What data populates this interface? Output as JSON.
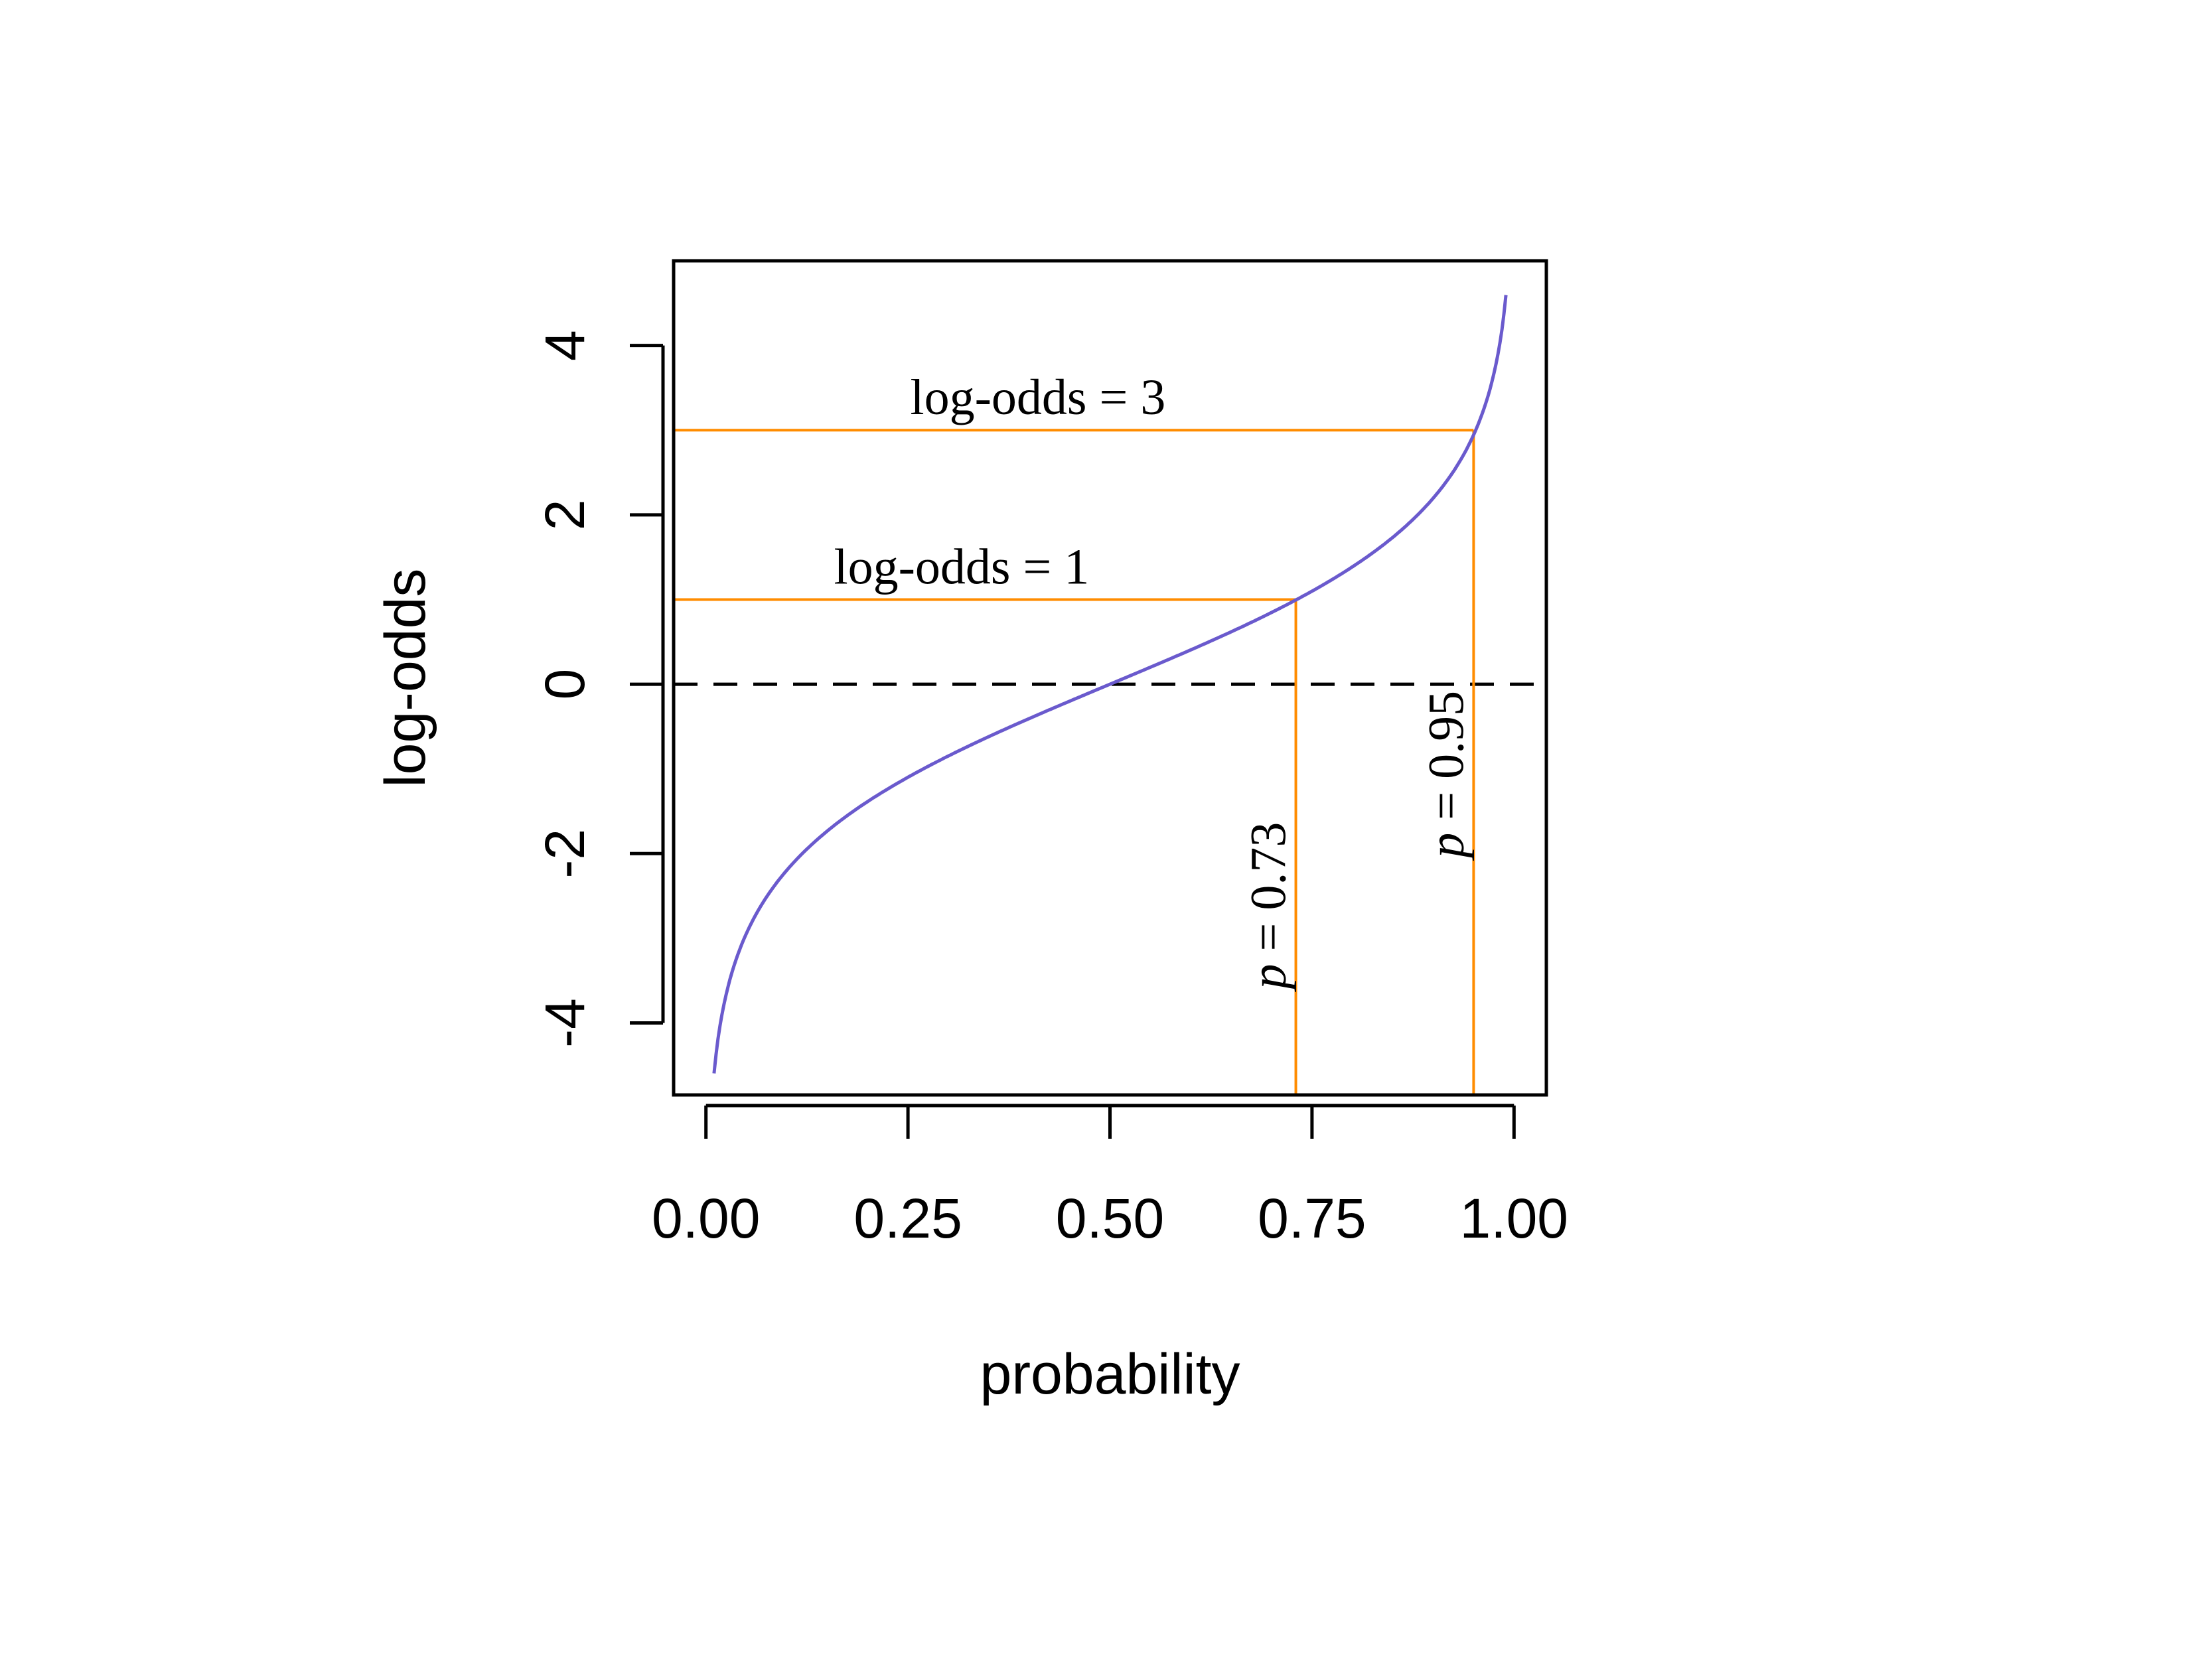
{
  "chart_data": {
    "type": "line",
    "title": "",
    "xlabel": "probability",
    "ylabel": "log-odds",
    "xlim": [
      -0.04,
      1.04
    ],
    "ylim": [
      -4.85,
      5.0
    ],
    "x_ticks": [
      0,
      0.25,
      0.5,
      0.75,
      1.0
    ],
    "x_tick_labels": [
      "0.00",
      "0.25",
      "0.50",
      "0.75",
      "1.00"
    ],
    "y_ticks": [
      -4,
      -2,
      0,
      2,
      4
    ],
    "y_tick_labels": [
      "-4",
      "-2",
      "0",
      "2",
      "4"
    ],
    "grid": false,
    "legend": "none",
    "series": [
      {
        "color": "#6a5acd",
        "function": "logit",
        "x_range": [
          0.01,
          0.99
        ]
      }
    ],
    "reference_line": {
      "y": 0,
      "style": "dashed",
      "color": "#000000"
    },
    "guides": [
      {
        "p": 0.73,
        "log_odds": 1,
        "color": "#ff8c00",
        "h_label": "log-odds = 1",
        "v_label_italic": "p",
        "v_label_rest": " = 0.73"
      },
      {
        "p": 0.95,
        "log_odds": 3,
        "color": "#ff8c00",
        "h_label": "log-odds = 3",
        "v_label_italic": "p",
        "v_label_rest": " = 0.95"
      }
    ]
  }
}
